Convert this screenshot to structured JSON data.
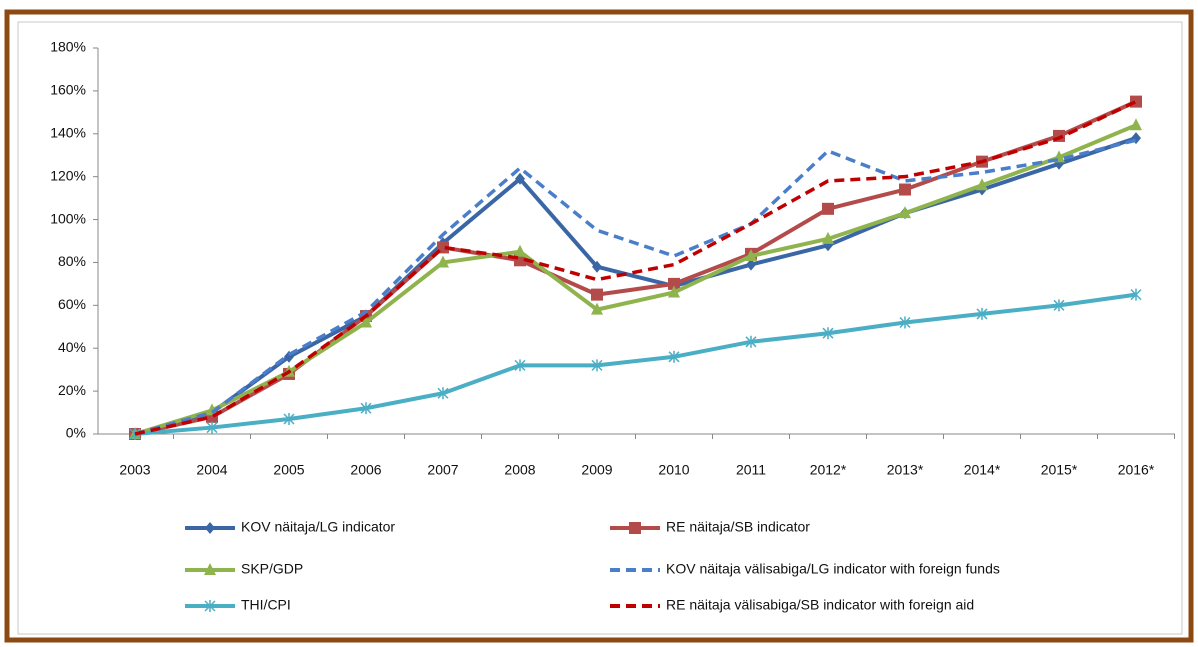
{
  "chart_data": {
    "type": "line",
    "categories": [
      "2003",
      "2004",
      "2005",
      "2006",
      "2007",
      "2008",
      "2009",
      "2010",
      "2011",
      "2012*",
      "2013*",
      "2014*",
      "2015*",
      "2016*"
    ],
    "ylim": [
      0,
      180
    ],
    "yticks": [
      {
        "value": 0,
        "label": "0%"
      },
      {
        "value": 20,
        "label": "20%"
      },
      {
        "value": 40,
        "label": "40%"
      },
      {
        "value": 60,
        "label": "60%"
      },
      {
        "value": 80,
        "label": "80%"
      },
      {
        "value": 100,
        "label": "100%"
      },
      {
        "value": 120,
        "label": "120%"
      },
      {
        "value": 140,
        "label": "140%"
      },
      {
        "value": 160,
        "label": "160%"
      },
      {
        "value": 180,
        "label": "180%"
      }
    ],
    "grid": false,
    "legend": "bottom",
    "series": [
      {
        "name": "KOV näitaja/LG indicator",
        "color": "#3a66a6",
        "marker": "diamond",
        "dash": false,
        "values": [
          0,
          10,
          36,
          55,
          89,
          119,
          78,
          69,
          79,
          88,
          103,
          114,
          126,
          138
        ]
      },
      {
        "name": "RE näitaja/SB indicator",
        "color": "#b34b4b",
        "marker": "square",
        "dash": false,
        "values": [
          0,
          8,
          28,
          55,
          87,
          81,
          65,
          70,
          84,
          105,
          114,
          127,
          139,
          155
        ]
      },
      {
        "name": "SKP/GDP",
        "color": "#8fb34d",
        "marker": "triangle",
        "dash": false,
        "values": [
          0,
          11,
          29,
          52,
          80,
          85,
          58,
          66,
          83,
          91,
          103,
          116,
          129,
          144
        ]
      },
      {
        "name": "KOV näitaja välisabiga/LG indicator with foreign funds",
        "color": "#4a7ecb",
        "marker": "none",
        "dash": true,
        "values": [
          0,
          10,
          37,
          57,
          93,
          124,
          95,
          83,
          98,
          132,
          118,
          122,
          128,
          137
        ]
      },
      {
        "name": "THI/CPI",
        "color": "#4aaec4",
        "marker": "asterisk",
        "dash": false,
        "values": [
          0,
          3,
          7,
          12,
          19,
          32,
          32,
          36,
          43,
          47,
          52,
          56,
          60,
          65
        ]
      },
      {
        "name": "RE näitaja välisabiga/SB indicator with foreign aid",
        "color": "#c00000",
        "marker": "none",
        "dash": true,
        "values": [
          0,
          8,
          29,
          55,
          87,
          82,
          72,
          79,
          98,
          118,
          120,
          127,
          138,
          155
        ]
      }
    ]
  }
}
